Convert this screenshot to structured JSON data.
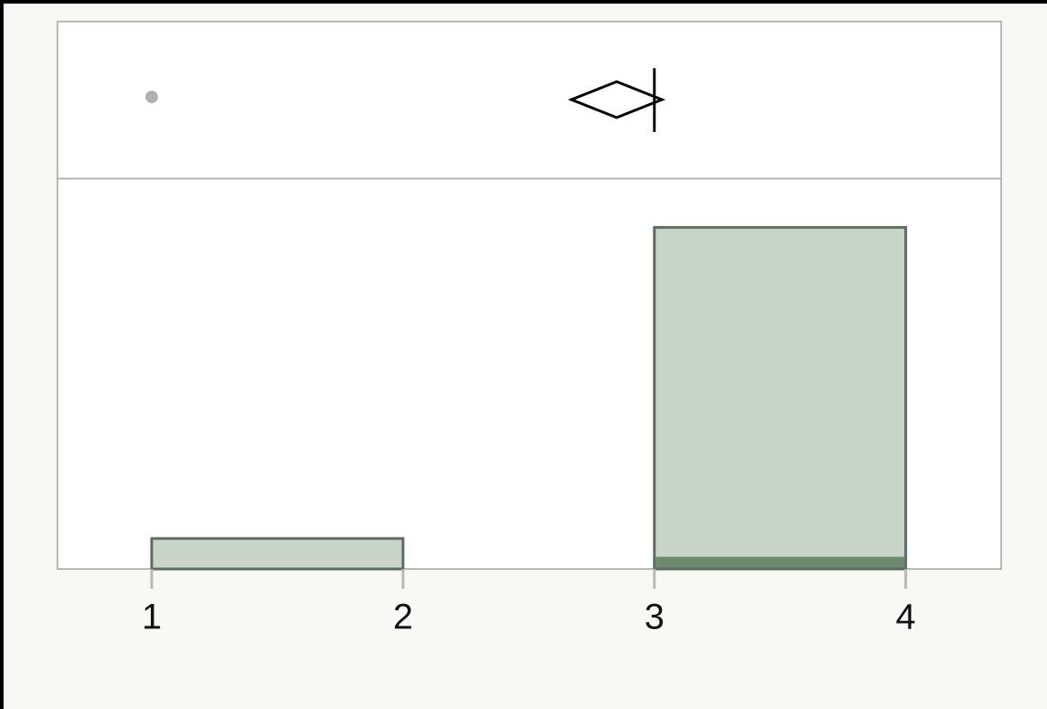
{
  "chart_data": {
    "type": "histogram",
    "bins": [
      1,
      2,
      3,
      4
    ],
    "counts": [
      5,
      0,
      56
    ],
    "highlight_counts": [
      0,
      0,
      2
    ],
    "color": "#c8d4c8",
    "highlight_color": "#6e8a6e",
    "edge_color": "#5f6a62",
    "xlim": [
      0.625,
      4.38
    ],
    "xticks": [
      1,
      2,
      3,
      4
    ],
    "ylim": [
      0,
      64
    ],
    "box": {
      "outliers": [
        1
      ],
      "median": 3,
      "mean": 2.85,
      "mean_ci": [
        2.67,
        3.03
      ]
    }
  }
}
